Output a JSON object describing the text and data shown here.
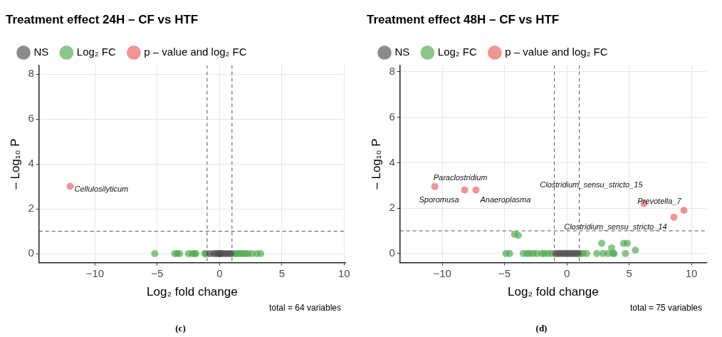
{
  "chart_data": [
    {
      "type": "scatter",
      "title": "Treatment effect 24H – CF vs HTF",
      "xlabel": "Log₂ fold change",
      "ylabel": "– Log₁₀ P",
      "xlim": [
        -14.5,
        10.1
      ],
      "ylim": [
        -0.4,
        8.4
      ],
      "xticks": [
        -10,
        -5,
        0,
        5,
        10
      ],
      "yticks": [
        0,
        2,
        4,
        6,
        8
      ],
      "grid": true,
      "legend": "top",
      "marker": "circle",
      "ref_lines": [
        {
          "axis": "x",
          "value": -1,
          "line_style": "dashed"
        },
        {
          "axis": "x",
          "value": 1,
          "line_style": "dashed"
        },
        {
          "axis": "y",
          "value": 1,
          "line_style": "dashed"
        }
      ],
      "series": [
        {
          "name": "NS",
          "color": "#4d4d4d",
          "x": [
            -0.8,
            -0.5,
            -0.3,
            -0.1,
            0,
            0.1,
            0.3,
            0.5,
            0.7,
            0.9
          ],
          "values": [
            0,
            0,
            0,
            0,
            0,
            0,
            0,
            0,
            0,
            0
          ]
        },
        {
          "name": "Log₂ FC",
          "color": "#4fa64f",
          "x": [
            -5.2,
            -3.6,
            -3.4,
            -3.2,
            -2.5,
            -2.2,
            -2.0,
            -1.9,
            -1.2,
            -1.1,
            1.1,
            1.3,
            1.5,
            1.7,
            1.9,
            2.1,
            2.3,
            2.6,
            3.0,
            3.3
          ],
          "values": [
            0,
            0,
            0,
            0,
            0,
            0,
            0,
            0,
            0,
            0,
            0,
            0,
            0,
            0,
            0,
            0,
            0,
            0,
            0,
            0
          ]
        },
        {
          "name": "p – value and log₂ FC",
          "color": "#e85a5a",
          "x": [
            -12
          ],
          "values": [
            3
          ]
        }
      ],
      "annotations": [
        {
          "text": "Cellulosilyticum",
          "x": -12,
          "y": 3
        },
        "total = 64 variables",
        "(c)"
      ]
    },
    {
      "type": "scatter",
      "title": "Treatment effect 48H – CF vs HTF",
      "xlabel": "Log₂ fold change",
      "ylabel": "– Log₁₀ P",
      "xlim": [
        -13.4,
        11.2
      ],
      "ylim": [
        -0.4,
        8.3
      ],
      "xticks": [
        -10,
        -5,
        0,
        5,
        10
      ],
      "yticks": [
        0,
        2,
        4,
        6,
        8
      ],
      "grid": true,
      "legend": "top",
      "marker": "circle",
      "ref_lines": [
        {
          "axis": "x",
          "value": -1,
          "line_style": "dashed"
        },
        {
          "axis": "x",
          "value": 1,
          "line_style": "dashed"
        },
        {
          "axis": "y",
          "value": 1,
          "line_style": "dashed"
        }
      ],
      "series": [
        {
          "name": "NS",
          "color": "#4d4d4d",
          "x": [
            -0.9,
            -0.7,
            -0.5,
            -0.3,
            -0.1,
            0.1,
            0.3,
            0.5,
            0.7,
            0.9
          ],
          "values": [
            0,
            0,
            0,
            0,
            0,
            0,
            0,
            0,
            0,
            0
          ]
        },
        {
          "name": "Log₂ FC",
          "color": "#4fa64f",
          "x": [
            -4.2,
            -3.9,
            -4.9,
            -4.6,
            -3.5,
            -3.2,
            -3.0,
            -2.7,
            -2.4,
            -2.0,
            -1.8,
            -1.5,
            -1.2,
            1.1,
            1.3,
            1.6,
            2.4,
            2.8,
            2.9,
            3.3,
            3.6,
            3.7,
            3.8,
            4.55,
            4.85,
            4.7,
            5.5
          ],
          "values": [
            0.85,
            0.8,
            0,
            0,
            0,
            0,
            0,
            0,
            0,
            0,
            0,
            0,
            0,
            0,
            0,
            0,
            0,
            0.45,
            0,
            0,
            0.25,
            0,
            0,
            0.45,
            0.45,
            0,
            0.15
          ]
        },
        {
          "name": "p – value and log₂ FC",
          "color": "#e85a5a",
          "x": [
            -10.6,
            -8.2,
            -7.3,
            6.2,
            9.4,
            8.6
          ],
          "values": [
            2.95,
            2.8,
            2.8,
            2.2,
            1.9,
            1.6
          ]
        }
      ],
      "annotations": [
        {
          "text": "Paraclostridium",
          "x": -10.6,
          "y": 2.95
        },
        {
          "text": "Sporomusa",
          "x": -8.2,
          "y": 2.8
        },
        {
          "text": "Anaeroplasma",
          "x": -7.3,
          "y": 2.8
        },
        {
          "text": "Clostridium_sensu_stricto_15",
          "x": 6.2,
          "y": 2.2
        },
        {
          "text": "Prevotella_7",
          "x": 9.4,
          "y": 1.9
        },
        {
          "text": "Clostridium_sensu_stricto_14",
          "x": 8.6,
          "y": 1.6
        },
        "total = 75 variables",
        "(d)"
      ]
    }
  ]
}
